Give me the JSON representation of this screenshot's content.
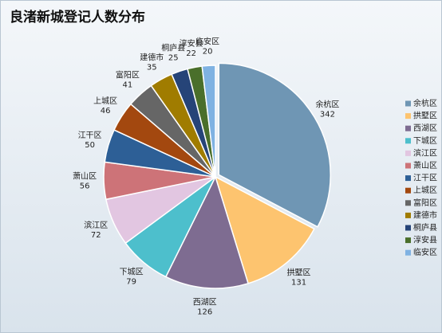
{
  "chart_data": {
    "type": "pie",
    "title": "良渚新城登记人数分布",
    "categories": [
      "余杭区",
      "拱墅区",
      "西湖区",
      "下城区",
      "滨江区",
      "萧山区",
      "江干区",
      "上城区",
      "富阳区",
      "建德市",
      "桐庐县",
      "淳安县",
      "临安区"
    ],
    "values": [
      342,
      131,
      126,
      79,
      72,
      56,
      50,
      46,
      41,
      35,
      25,
      22,
      20
    ],
    "colors": [
      "#6f96b4",
      "#fdc46f",
      "#7e6c91",
      "#4dbfcc",
      "#e2c6e1",
      "#cd7378",
      "#2d5f96",
      "#a3480f",
      "#666666",
      "#a07c00",
      "#264478",
      "#4a6f2b",
      "#7fb2e2"
    ],
    "legend": "right"
  }
}
